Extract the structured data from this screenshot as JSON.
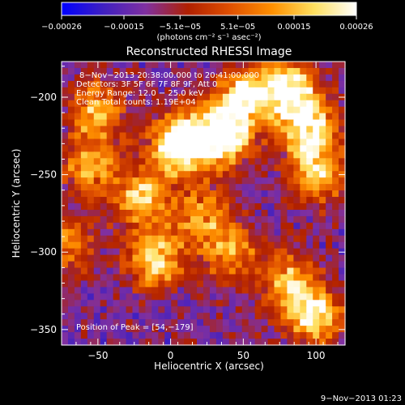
{
  "chart_data": {
    "type": "heatmap",
    "title": "Reconstructed RHESSI Image",
    "xlabel": "Heliocentric X (arcsec)",
    "ylabel": "Heliocentric Y (arcsec)",
    "xlim": [
      -75,
      120
    ],
    "ylim": [
      -360,
      -177
    ],
    "xticks": [
      -50,
      0,
      50,
      100
    ],
    "xtick_labels": [
      "−50",
      "0",
      "50",
      "100"
    ],
    "yticks": [
      -200,
      -250,
      -300,
      -350
    ],
    "ytick_labels": [
      "−200",
      "−250",
      "−300",
      "−350"
    ],
    "colorbar": {
      "range": [
        -0.00026,
        0.00026
      ],
      "ticks": [
        -0.00026,
        -0.00015,
        -5.1e-05,
        5.1e-05,
        0.00015,
        0.00026
      ],
      "tick_labels": [
        "−0.00026",
        "−0.00015",
        "−5.1e−05",
        "5.1e−05",
        "0.00015",
        "0.00026"
      ],
      "unit": "(photons cm⁻² s⁻¹ asec⁻²)",
      "colormap": [
        "#0000ff",
        "#4020c0",
        "#8030a0",
        "#b02000",
        "#e05000",
        "#ff9000",
        "#ffe060",
        "#ffffff"
      ]
    },
    "annotations": [
      "8−Nov−2013 20:38:00.000 to 20:41:00.000",
      "Detectors: 3F 5F 6F 7F 8F 9F, Att 0",
      "Energy Range: 12.0 − 25.0 keV",
      "Clean    Total counts: 1.19E+04",
      "Position of Peak = [54,−179]"
    ],
    "peak_position": [
      54,
      -179
    ],
    "bright_sources": [
      {
        "x": 5,
        "y": -230,
        "intensity": 0.95
      },
      {
        "x": 35,
        "y": -225,
        "intensity": 1.0
      },
      {
        "x": 50,
        "y": -200,
        "intensity": 0.7
      },
      {
        "x": 80,
        "y": -195,
        "intensity": 0.8
      },
      {
        "x": 95,
        "y": -220,
        "intensity": 0.75
      },
      {
        "x": 100,
        "y": -250,
        "intensity": 0.6
      },
      {
        "x": -50,
        "y": -210,
        "intensity": 0.55
      },
      {
        "x": -55,
        "y": -245,
        "intensity": 0.5
      },
      {
        "x": -20,
        "y": -265,
        "intensity": 0.6
      },
      {
        "x": -10,
        "y": -305,
        "intensity": 0.65
      },
      {
        "x": 40,
        "y": -300,
        "intensity": 0.5
      },
      {
        "x": 80,
        "y": -320,
        "intensity": 0.55
      },
      {
        "x": 100,
        "y": -340,
        "intensity": 0.7
      },
      {
        "x": 20,
        "y": -275,
        "intensity": 0.45
      },
      {
        "x": -70,
        "y": -295,
        "intensity": 0.4
      }
    ]
  },
  "timestamp": "9−Nov−2013 01:23"
}
